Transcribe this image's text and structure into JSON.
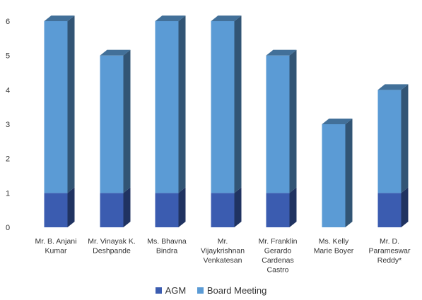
{
  "chart_data": {
    "type": "bar",
    "stacked": true,
    "three_d": true,
    "categories": [
      [
        "Mr. B. Anjani",
        "Kumar"
      ],
      [
        "Mr. Vinayak K.",
        "Deshpande"
      ],
      [
        "Ms. Bhavna",
        "Bindra"
      ],
      [
        "Mr.",
        "Vijaykrishnan",
        "Venkatesan"
      ],
      [
        "Mr. Franklin",
        "Gerardo",
        "Cardenas",
        "Castro"
      ],
      [
        "Ms. Kelly",
        "Marie Boyer"
      ],
      [
        "Mr. D.",
        "Parameswar",
        "Reddy*"
      ]
    ],
    "series": [
      {
        "name": "AGM",
        "values": [
          1,
          1,
          1,
          1,
          1,
          0,
          1
        ],
        "color": "#3b5cb0"
      },
      {
        "name": "Board Meeting",
        "values": [
          5,
          4,
          5,
          5,
          4,
          3,
          3
        ],
        "color": "#5b9bd5"
      }
    ],
    "ylim": [
      0,
      6
    ],
    "yticks": [
      0,
      1,
      2,
      3,
      4,
      5,
      6
    ],
    "grid": false,
    "legend_position": "bottom"
  }
}
